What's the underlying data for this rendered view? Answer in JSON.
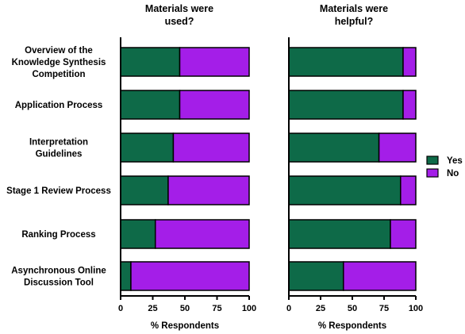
{
  "chart_data": {
    "type": "bar",
    "orientation": "horizontal",
    "stacked": true,
    "categories": [
      [
        "Overview of the",
        "Knowledge Synthesis",
        "Competition"
      ],
      [
        "Application Process"
      ],
      [
        "Interpretation",
        "Guidelines"
      ],
      [
        "Stage 1 Review Process"
      ],
      [
        "Ranking Process"
      ],
      [
        "Asynchronous Online",
        "Discussion Tool"
      ]
    ],
    "legend": {
      "placement": "right",
      "items": [
        {
          "label": "Yes",
          "color": "#0e6a48"
        },
        {
          "label": "No",
          "color": "#a41ee8"
        }
      ]
    },
    "panels": [
      {
        "title": [
          "Materials were",
          "used?"
        ],
        "xlabel": "% Respondents",
        "xlim": [
          0,
          100
        ],
        "xticks": [
          "0",
          "25",
          "50",
          "75",
          "100"
        ],
        "series": [
          {
            "name": "Yes",
            "values": [
              46,
              46,
              41,
              37,
              27,
              8
            ]
          },
          {
            "name": "No",
            "values": [
              54,
              54,
              59,
              63,
              73,
              92
            ]
          }
        ]
      },
      {
        "title": [
          "Materials were",
          "helpful?"
        ],
        "xlabel": "% Respondents",
        "xlim": [
          0,
          100
        ],
        "xticks": [
          "0",
          "25",
          "50",
          "75",
          "100"
        ],
        "series": [
          {
            "name": "Yes",
            "values": [
              90,
              90,
              71,
              88,
              80,
              43
            ]
          },
          {
            "name": "No",
            "values": [
              10,
              10,
              29,
              12,
              20,
              57
            ]
          }
        ]
      }
    ]
  }
}
